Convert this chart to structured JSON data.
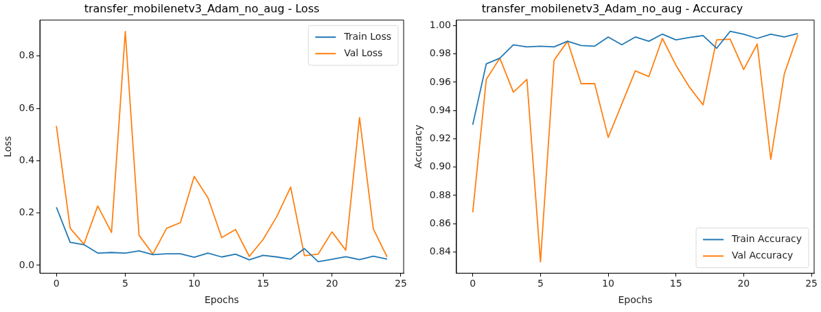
{
  "chart_data": [
    {
      "type": "line",
      "title": "transfer_mobilenetv3_Adam_no_aug - Loss",
      "xlabel": "Epochs",
      "ylabel": "Loss",
      "x": [
        0,
        1,
        2,
        3,
        4,
        5,
        6,
        7,
        8,
        9,
        10,
        11,
        12,
        13,
        14,
        15,
        16,
        17,
        18,
        19,
        20,
        21,
        22,
        23,
        24
      ],
      "series": [
        {
          "name": "Train Loss",
          "color": "#1f77b4",
          "values": [
            0.222,
            0.088,
            0.079,
            0.047,
            0.049,
            0.047,
            0.055,
            0.041,
            0.044,
            0.044,
            0.031,
            0.047,
            0.032,
            0.043,
            0.021,
            0.038,
            0.032,
            0.024,
            0.064,
            0.014,
            0.023,
            0.033,
            0.022,
            0.035,
            0.024
          ]
        },
        {
          "name": "Val Loss",
          "color": "#ff7f0e",
          "values": [
            0.533,
            0.142,
            0.081,
            0.227,
            0.126,
            0.894,
            0.115,
            0.043,
            0.142,
            0.163,
            0.34,
            0.258,
            0.106,
            0.137,
            0.034,
            0.099,
            0.187,
            0.299,
            0.037,
            0.043,
            0.128,
            0.058,
            0.565,
            0.139,
            0.032
          ]
        }
      ],
      "xlim": [
        -1.2,
        25.2
      ],
      "xticks": [
        0,
        5,
        10,
        15,
        20,
        25
      ],
      "ylim": [
        -0.03,
        0.938
      ],
      "yticks": [
        {
          "value": 0,
          "label": "0.0"
        },
        {
          "value": 0.2,
          "label": "0.2"
        },
        {
          "value": 0.4,
          "label": "0.4"
        },
        {
          "value": 0.6,
          "label": "0.6"
        },
        {
          "value": 0.8,
          "label": "0.8"
        }
      ],
      "grid": false,
      "legend": "top right"
    },
    {
      "type": "line",
      "title": "transfer_mobilenetv3_Adam_no_aug - Accuracy",
      "xlabel": "Epochs",
      "ylabel": "Accuracy",
      "x": [
        0,
        1,
        2,
        3,
        4,
        5,
        6,
        7,
        8,
        9,
        10,
        11,
        12,
        13,
        14,
        15,
        16,
        17,
        18,
        19,
        20,
        21,
        22,
        23,
        24
      ],
      "series": [
        {
          "name": "Train Accuracy",
          "color": "#1f77b4",
          "values": [
            0.93,
            0.973,
            0.977,
            0.9865,
            0.985,
            0.9855,
            0.985,
            0.989,
            0.986,
            0.9855,
            0.992,
            0.9865,
            0.992,
            0.989,
            0.994,
            0.99,
            0.9917,
            0.993,
            0.984,
            0.996,
            0.994,
            0.991,
            0.994,
            0.992,
            0.9945
          ]
        },
        {
          "name": "Val Accuracy",
          "color": "#ff7f0e",
          "values": [
            0.868,
            0.962,
            0.977,
            0.953,
            0.962,
            0.833,
            0.9755,
            0.989,
            0.959,
            0.959,
            0.921,
            0.9445,
            0.968,
            0.964,
            0.991,
            0.972,
            0.9565,
            0.944,
            0.99,
            0.9905,
            0.969,
            0.987,
            0.9055,
            0.966,
            0.9935
          ]
        }
      ],
      "xlim": [
        -1.2,
        25.2
      ],
      "xticks": [
        0,
        5,
        10,
        15,
        20,
        25
      ],
      "ylim": [
        0.825,
        1.004
      ],
      "yticks": [
        {
          "value": 0.84,
          "label": "0.84"
        },
        {
          "value": 0.86,
          "label": "0.86"
        },
        {
          "value": 0.88,
          "label": "0.88"
        },
        {
          "value": 0.9,
          "label": "0.90"
        },
        {
          "value": 0.92,
          "label": "0.92"
        },
        {
          "value": 0.94,
          "label": "0.94"
        },
        {
          "value": 0.96,
          "label": "0.96"
        },
        {
          "value": 0.98,
          "label": "0.98"
        },
        {
          "value": 1,
          "label": "1.00"
        }
      ],
      "grid": false,
      "legend": "bottom right"
    }
  ]
}
